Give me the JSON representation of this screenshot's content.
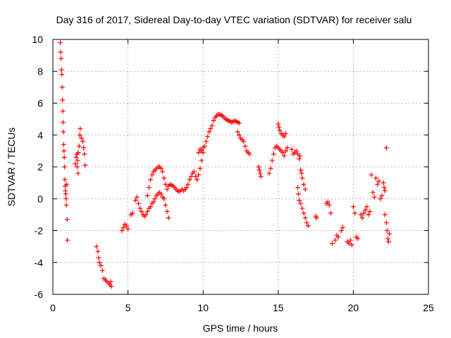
{
  "chart_data": {
    "type": "scatter",
    "title": "Day 316 of 2017, Sidereal Day-to-day VTEC variation (SDTVAR) for receiver salu",
    "xlabel": "GPS time / hours",
    "ylabel": "SDTVAR / TECUs",
    "xlim": [
      0,
      25
    ],
    "ylim": [
      -6,
      10
    ],
    "xticks": [
      "0",
      "5",
      "10",
      "15",
      "20",
      "25"
    ],
    "yticks": [
      "-6",
      "-4",
      "-2",
      "0",
      "2",
      "4",
      "6",
      "8",
      "10"
    ],
    "grid": true,
    "marker": "+",
    "color": "#ff0000",
    "series": [
      {
        "name": "SDTVAR",
        "points": [
          [
            0.5,
            9.8
          ],
          [
            0.52,
            9.2
          ],
          [
            0.55,
            8.8
          ],
          [
            0.58,
            8.1
          ],
          [
            0.6,
            7.8
          ],
          [
            0.62,
            7.0
          ],
          [
            0.64,
            6.2
          ],
          [
            0.66,
            5.5
          ],
          [
            0.68,
            4.8
          ],
          [
            0.7,
            4.2
          ],
          [
            0.72,
            3.4
          ],
          [
            0.74,
            3.0
          ],
          [
            0.76,
            2.6
          ],
          [
            0.78,
            2.0
          ],
          [
            0.8,
            1.2
          ],
          [
            0.82,
            0.8
          ],
          [
            0.84,
            0.5
          ],
          [
            0.86,
            0.3
          ],
          [
            0.88,
            0.0
          ],
          [
            0.9,
            -0.4
          ],
          [
            0.95,
            -1.3
          ],
          [
            0.97,
            -2.6
          ],
          [
            0.92,
            0.9
          ],
          [
            1.5,
            2.2
          ],
          [
            1.55,
            2.6
          ],
          [
            1.6,
            2.8
          ],
          [
            1.62,
            2.0
          ],
          [
            1.65,
            2.4
          ],
          [
            1.68,
            1.6
          ],
          [
            1.7,
            2.9
          ],
          [
            1.75,
            3.3
          ],
          [
            1.8,
            4.0
          ],
          [
            1.82,
            4.4
          ],
          [
            1.9,
            3.8
          ],
          [
            2.0,
            3.6
          ],
          [
            2.05,
            3.2
          ],
          [
            2.1,
            2.8
          ],
          [
            2.15,
            2.1
          ],
          [
            2.9,
            -3.0
          ],
          [
            3.0,
            -3.3
          ],
          [
            3.05,
            -3.7
          ],
          [
            3.1,
            -4.0
          ],
          [
            3.2,
            -4.2
          ],
          [
            3.3,
            -4.5
          ],
          [
            3.4,
            -5.0
          ],
          [
            3.5,
            -5.1
          ],
          [
            3.6,
            -5.2
          ],
          [
            3.7,
            -5.3
          ],
          [
            3.8,
            -5.4
          ],
          [
            3.85,
            -5.2
          ],
          [
            3.9,
            -5.5
          ],
          [
            4.6,
            -2.0
          ],
          [
            4.7,
            -1.8
          ],
          [
            4.8,
            -1.6
          ],
          [
            4.9,
            -1.7
          ],
          [
            5.0,
            -1.9
          ],
          [
            5.2,
            -1.0
          ],
          [
            5.3,
            -0.9
          ],
          [
            5.5,
            -0.1
          ],
          [
            5.6,
            0.1
          ],
          [
            5.7,
            -0.3
          ],
          [
            5.8,
            -0.6
          ],
          [
            5.9,
            -0.8
          ],
          [
            6.0,
            -1.0
          ],
          [
            6.1,
            -1.1
          ],
          [
            6.2,
            -1.0
          ],
          [
            6.3,
            -0.8
          ],
          [
            6.4,
            -0.6
          ],
          [
            6.5,
            -0.5
          ],
          [
            6.6,
            -0.3
          ],
          [
            6.7,
            -0.2
          ],
          [
            6.8,
            0.0
          ],
          [
            6.9,
            0.2
          ],
          [
            7.0,
            0.3
          ],
          [
            7.1,
            0.4
          ],
          [
            7.2,
            0.3
          ],
          [
            7.3,
            0.1
          ],
          [
            7.4,
            0.0
          ],
          [
            7.5,
            -0.4
          ],
          [
            7.6,
            -0.8
          ],
          [
            7.7,
            -1.2
          ],
          [
            6.3,
            0.2
          ],
          [
            6.4,
            0.7
          ],
          [
            6.5,
            1.2
          ],
          [
            6.6,
            1.5
          ],
          [
            6.7,
            1.7
          ],
          [
            6.8,
            1.8
          ],
          [
            6.9,
            1.9
          ],
          [
            7.0,
            2.0
          ],
          [
            7.1,
            2.0
          ],
          [
            7.2,
            1.9
          ],
          [
            7.3,
            1.7
          ],
          [
            7.4,
            1.3
          ],
          [
            7.5,
            0.9
          ],
          [
            7.6,
            0.6
          ],
          [
            7.7,
            0.8
          ],
          [
            7.8,
            0.9
          ],
          [
            7.9,
            0.85
          ],
          [
            8.0,
            0.8
          ],
          [
            8.1,
            0.7
          ],
          [
            8.2,
            0.6
          ],
          [
            8.3,
            0.5
          ],
          [
            8.4,
            0.45
          ],
          [
            8.5,
            0.5
          ],
          [
            8.6,
            0.6
          ],
          [
            8.7,
            0.5
          ],
          [
            8.8,
            0.6
          ],
          [
            8.9,
            0.7
          ],
          [
            9.0,
            0.9
          ],
          [
            9.1,
            1.2
          ],
          [
            9.2,
            1.4
          ],
          [
            9.3,
            1.6
          ],
          [
            9.4,
            1.7
          ],
          [
            9.5,
            1.4
          ],
          [
            9.6,
            1.2
          ],
          [
            9.7,
            1.5
          ],
          [
            9.8,
            1.9
          ],
          [
            9.9,
            2.4
          ],
          [
            10.0,
            2.9
          ],
          [
            10.1,
            3.3
          ],
          [
            9.7,
            2.9
          ],
          [
            9.8,
            3.1
          ],
          [
            9.9,
            3.0
          ],
          [
            10.0,
            3.2
          ],
          [
            10.2,
            3.6
          ],
          [
            10.3,
            3.9
          ],
          [
            10.4,
            4.2
          ],
          [
            10.5,
            4.4
          ],
          [
            10.6,
            4.6
          ],
          [
            10.7,
            4.9
          ],
          [
            10.8,
            5.1
          ],
          [
            10.9,
            5.2
          ],
          [
            11.0,
            5.3
          ],
          [
            11.1,
            5.3
          ],
          [
            11.2,
            5.25
          ],
          [
            11.3,
            5.2
          ],
          [
            11.4,
            5.1
          ],
          [
            11.5,
            5.0
          ],
          [
            11.6,
            4.95
          ],
          [
            11.7,
            4.9
          ],
          [
            11.8,
            4.85
          ],
          [
            11.9,
            4.8
          ],
          [
            12.0,
            4.85
          ],
          [
            12.1,
            4.9
          ],
          [
            12.2,
            4.85
          ],
          [
            12.3,
            4.8
          ],
          [
            12.4,
            4.75
          ],
          [
            12.3,
            4.2
          ],
          [
            12.4,
            4.0
          ],
          [
            12.5,
            3.8
          ],
          [
            12.6,
            3.7
          ],
          [
            12.7,
            3.6
          ],
          [
            12.8,
            3.3
          ],
          [
            12.9,
            3.0
          ],
          [
            13.0,
            2.9
          ],
          [
            13.1,
            2.8
          ],
          [
            13.7,
            2.0
          ],
          [
            13.75,
            1.8
          ],
          [
            13.8,
            1.6
          ],
          [
            13.85,
            1.4
          ],
          [
            14.4,
            1.6
          ],
          [
            14.5,
            1.9
          ],
          [
            14.6,
            2.4
          ],
          [
            14.7,
            2.8
          ],
          [
            14.8,
            3.2
          ],
          [
            14.9,
            3.3
          ],
          [
            15.0,
            3.2
          ],
          [
            15.1,
            3.1
          ],
          [
            15.2,
            3.0
          ],
          [
            15.3,
            2.9
          ],
          [
            15.4,
            2.7
          ],
          [
            15.5,
            3.0
          ],
          [
            15.6,
            3.2
          ],
          [
            15.0,
            4.7
          ],
          [
            15.05,
            4.5
          ],
          [
            15.1,
            4.3
          ],
          [
            15.2,
            4.1
          ],
          [
            15.3,
            4.0
          ],
          [
            15.4,
            3.9
          ],
          [
            15.5,
            4.1
          ],
          [
            15.9,
            3.1
          ],
          [
            16.0,
            2.8
          ],
          [
            16.1,
            2.9
          ],
          [
            16.2,
            3.0
          ],
          [
            16.3,
            2.8
          ],
          [
            16.4,
            2.5
          ],
          [
            16.45,
            2.7
          ],
          [
            16.3,
            0.7
          ],
          [
            16.35,
            0.3
          ],
          [
            16.4,
            -0.1
          ],
          [
            16.5,
            -0.3
          ],
          [
            16.6,
            -0.6
          ],
          [
            16.7,
            -0.9
          ],
          [
            16.8,
            -1.2
          ],
          [
            16.9,
            -1.5
          ],
          [
            17.0,
            -1.7
          ],
          [
            16.5,
            1.8
          ],
          [
            16.55,
            1.6
          ],
          [
            16.6,
            1.3
          ],
          [
            16.7,
            0.9
          ],
          [
            16.8,
            0.6
          ],
          [
            17.5,
            -1.1
          ],
          [
            17.55,
            -1.2
          ],
          [
            18.2,
            -0.3
          ],
          [
            18.3,
            -0.2
          ],
          [
            18.4,
            -0.4
          ],
          [
            18.5,
            -0.9
          ],
          [
            18.6,
            -2.8
          ],
          [
            18.8,
            -2.6
          ],
          [
            18.9,
            -2.3
          ],
          [
            19.0,
            -2.4
          ],
          [
            19.2,
            -2.0
          ],
          [
            19.3,
            -1.8
          ],
          [
            19.6,
            -2.7
          ],
          [
            19.7,
            -2.8
          ],
          [
            19.8,
            -2.6
          ],
          [
            19.9,
            -2.9
          ],
          [
            20.0,
            -0.5
          ],
          [
            20.1,
            -0.9
          ],
          [
            20.2,
            -2.4
          ],
          [
            20.3,
            -2.5
          ],
          [
            20.5,
            -1.0
          ],
          [
            20.6,
            -1.2
          ],
          [
            20.7,
            -0.9
          ],
          [
            20.8,
            -0.7
          ],
          [
            20.9,
            -0.5
          ],
          [
            21.0,
            -1.0
          ],
          [
            21.1,
            -0.8
          ],
          [
            21.2,
            1.5
          ],
          [
            21.3,
            0.4
          ],
          [
            21.4,
            0.1
          ],
          [
            21.5,
            1.3
          ],
          [
            21.6,
            0.9
          ],
          [
            21.7,
            1.1
          ],
          [
            21.8,
            0.0
          ],
          [
            21.9,
            0.2
          ],
          [
            22.0,
            1.0
          ],
          [
            22.05,
            0.7
          ],
          [
            22.1,
            0.5
          ],
          [
            22.1,
            -1.0
          ],
          [
            22.2,
            -1.5
          ],
          [
            22.25,
            -2.0
          ],
          [
            22.3,
            -2.5
          ],
          [
            22.4,
            -2.2
          ],
          [
            22.2,
            3.2
          ],
          [
            22.35,
            -2.7
          ]
        ]
      }
    ]
  }
}
